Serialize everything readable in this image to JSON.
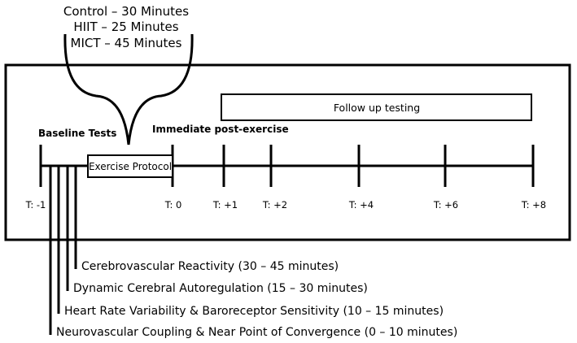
{
  "conditions": [
    "Control – 30 Minutes",
    "HIIT – 25 Minutes",
    "MICT – 45 Minutes"
  ],
  "baseline_label": "Baseline Tests",
  "exercise_box_label": "Exercise Protocol",
  "post_exercise_label": "Immediate post-exercise",
  "follow_up_label": "Follow up testing",
  "timepoints": [
    "T: -1",
    "T: 0",
    "T: +1",
    "T: +2",
    "T: +4",
    "T: +6",
    "T: +8"
  ],
  "baseline_measures": [
    "Cerebrovascular Reactivity (30 – 45 minutes)",
    "Dynamic Cerebral Autoregulation (15 – 30 minutes)",
    "Heart Rate Variability & Baroreceptor Sensitivity (10 – 15 minutes)",
    "Neurovascular Coupling & Near Point of Convergence (0 – 10 minutes)"
  ]
}
